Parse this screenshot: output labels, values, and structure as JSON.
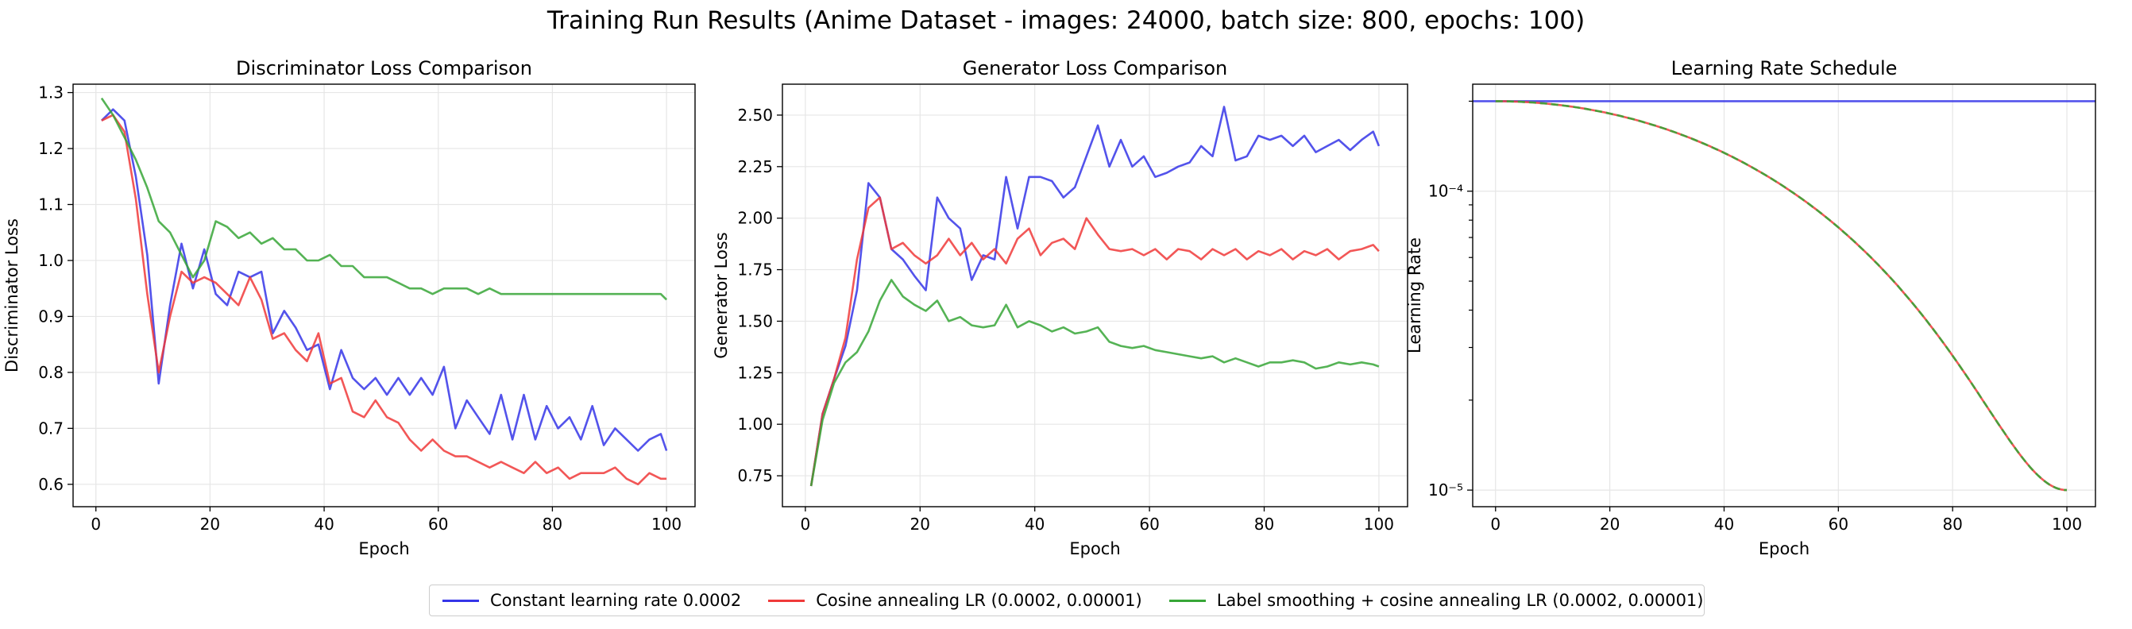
{
  "figure": {
    "suptitle": "Training Run Results (Anime Dataset - images: 24000, batch size: 800, epochs: 100)"
  },
  "legend": {
    "placement": "bottom-center",
    "entries": [
      {
        "label": "Constant learning rate 0.0002",
        "color": "#3535e8"
      },
      {
        "label": "Cosine annealing LR (0.0002, 0.00001)",
        "color": "#f03a3a"
      },
      {
        "label": "Label smoothing + cosine annealing LR (0.0002, 0.00001)",
        "color": "#37a637"
      }
    ]
  },
  "chart_data": [
    {
      "type": "line",
      "title": "Discriminator Loss Comparison",
      "xlabel": "Epoch",
      "ylabel": "Discriminator Loss",
      "xlim": [
        -4,
        105
      ],
      "ylim": [
        0.56,
        1.315
      ],
      "xticks": [
        0,
        20,
        40,
        60,
        80,
        100
      ],
      "yticks": [
        0.6,
        0.7,
        0.8,
        0.9,
        1.0,
        1.1,
        1.2,
        1.3
      ],
      "ytick_labels": [
        "0.6",
        "0.7",
        "0.8",
        "0.9",
        "1.0",
        "1.1",
        "1.2",
        "1.3"
      ],
      "grid": true,
      "series": [
        {
          "name": "Constant learning rate 0.0002",
          "color": "#3535e8",
          "x": [
            1,
            3,
            5,
            7,
            9,
            11,
            13,
            15,
            17,
            19,
            21,
            23,
            25,
            27,
            29,
            31,
            33,
            35,
            37,
            39,
            41,
            43,
            45,
            47,
            49,
            51,
            53,
            55,
            57,
            59,
            61,
            63,
            65,
            67,
            69,
            71,
            73,
            75,
            77,
            79,
            81,
            83,
            85,
            87,
            89,
            91,
            93,
            95,
            97,
            99,
            100
          ],
          "y": [
            1.25,
            1.27,
            1.25,
            1.15,
            1.01,
            0.78,
            0.92,
            1.03,
            0.95,
            1.02,
            0.94,
            0.92,
            0.98,
            0.97,
            0.98,
            0.87,
            0.91,
            0.88,
            0.84,
            0.85,
            0.77,
            0.84,
            0.79,
            0.77,
            0.79,
            0.76,
            0.79,
            0.76,
            0.79,
            0.76,
            0.81,
            0.7,
            0.75,
            0.72,
            0.69,
            0.76,
            0.68,
            0.76,
            0.68,
            0.74,
            0.7,
            0.72,
            0.68,
            0.74,
            0.67,
            0.7,
            0.68,
            0.66,
            0.68,
            0.69,
            0.66
          ]
        },
        {
          "name": "Cosine annealing LR (0.0002, 0.00001)",
          "color": "#f03a3a",
          "x": [
            1,
            3,
            5,
            7,
            9,
            11,
            13,
            15,
            17,
            19,
            21,
            23,
            25,
            27,
            29,
            31,
            33,
            35,
            37,
            39,
            41,
            43,
            45,
            47,
            49,
            51,
            53,
            55,
            57,
            59,
            61,
            63,
            65,
            67,
            69,
            71,
            73,
            75,
            77,
            79,
            81,
            83,
            85,
            87,
            89,
            91,
            93,
            95,
            97,
            99,
            100
          ],
          "y": [
            1.25,
            1.26,
            1.23,
            1.11,
            0.94,
            0.8,
            0.9,
            0.98,
            0.96,
            0.97,
            0.96,
            0.94,
            0.92,
            0.97,
            0.93,
            0.86,
            0.87,
            0.84,
            0.82,
            0.87,
            0.78,
            0.79,
            0.73,
            0.72,
            0.75,
            0.72,
            0.71,
            0.68,
            0.66,
            0.68,
            0.66,
            0.65,
            0.65,
            0.64,
            0.63,
            0.64,
            0.63,
            0.62,
            0.64,
            0.62,
            0.63,
            0.61,
            0.62,
            0.62,
            0.62,
            0.63,
            0.61,
            0.6,
            0.62,
            0.61,
            0.61
          ]
        },
        {
          "name": "Label smoothing + cosine annealing LR (0.0002, 0.00001)",
          "color": "#37a637",
          "x": [
            1,
            3,
            5,
            7,
            9,
            11,
            13,
            15,
            17,
            19,
            21,
            23,
            25,
            27,
            29,
            31,
            33,
            35,
            37,
            39,
            41,
            43,
            45,
            47,
            49,
            51,
            53,
            55,
            57,
            59,
            61,
            63,
            65,
            67,
            69,
            71,
            73,
            75,
            77,
            79,
            81,
            83,
            85,
            87,
            89,
            91,
            93,
            95,
            97,
            99,
            100
          ],
          "y": [
            1.29,
            1.26,
            1.22,
            1.18,
            1.13,
            1.07,
            1.05,
            1.01,
            0.97,
            1.0,
            1.07,
            1.06,
            1.04,
            1.05,
            1.03,
            1.04,
            1.02,
            1.02,
            1.0,
            1.0,
            1.01,
            0.99,
            0.99,
            0.97,
            0.97,
            0.97,
            0.96,
            0.95,
            0.95,
            0.94,
            0.95,
            0.95,
            0.95,
            0.94,
            0.95,
            0.94,
            0.94,
            0.94,
            0.94,
            0.94,
            0.94,
            0.94,
            0.94,
            0.94,
            0.94,
            0.94,
            0.94,
            0.94,
            0.94,
            0.94,
            0.93
          ]
        }
      ]
    },
    {
      "type": "line",
      "title": "Generator Loss Comparison",
      "xlabel": "Epoch",
      "ylabel": "Generator Loss",
      "xlim": [
        -4,
        105
      ],
      "ylim": [
        0.6,
        2.65
      ],
      "xticks": [
        0,
        20,
        40,
        60,
        80,
        100
      ],
      "yticks": [
        0.75,
        1.0,
        1.25,
        1.5,
        1.75,
        2.0,
        2.25,
        2.5
      ],
      "ytick_labels": [
        "0.75",
        "1.00",
        "1.25",
        "1.50",
        "1.75",
        "2.00",
        "2.25",
        "2.50"
      ],
      "grid": true,
      "series": [
        {
          "name": "Constant learning rate 0.0002",
          "color": "#3535e8",
          "x": [
            1,
            3,
            5,
            7,
            9,
            11,
            13,
            15,
            17,
            19,
            21,
            23,
            25,
            27,
            29,
            31,
            33,
            35,
            37,
            39,
            41,
            43,
            45,
            47,
            49,
            51,
            53,
            55,
            57,
            59,
            61,
            63,
            65,
            67,
            69,
            71,
            73,
            75,
            77,
            79,
            81,
            83,
            85,
            87,
            89,
            91,
            93,
            95,
            97,
            99,
            100
          ],
          "y": [
            0.7,
            1.05,
            1.22,
            1.38,
            1.65,
            2.17,
            2.1,
            1.85,
            1.8,
            1.72,
            1.65,
            2.1,
            2.0,
            1.95,
            1.7,
            1.82,
            1.8,
            2.2,
            1.95,
            2.2,
            2.2,
            2.18,
            2.1,
            2.15,
            2.3,
            2.45,
            2.25,
            2.38,
            2.25,
            2.3,
            2.2,
            2.22,
            2.25,
            2.27,
            2.35,
            2.3,
            2.54,
            2.28,
            2.3,
            2.4,
            2.38,
            2.4,
            2.35,
            2.4,
            2.32,
            2.35,
            2.38,
            2.33,
            2.38,
            2.42,
            2.35
          ]
        },
        {
          "name": "Cosine annealing LR (0.0002, 0.00001)",
          "color": "#f03a3a",
          "x": [
            1,
            3,
            5,
            7,
            9,
            11,
            13,
            15,
            17,
            19,
            21,
            23,
            25,
            27,
            29,
            31,
            33,
            35,
            37,
            39,
            41,
            43,
            45,
            47,
            49,
            51,
            53,
            55,
            57,
            59,
            61,
            63,
            65,
            67,
            69,
            71,
            73,
            75,
            77,
            79,
            81,
            83,
            85,
            87,
            89,
            91,
            93,
            95,
            97,
            99,
            100
          ],
          "y": [
            0.7,
            1.05,
            1.22,
            1.42,
            1.8,
            2.05,
            2.1,
            1.85,
            1.88,
            1.82,
            1.78,
            1.82,
            1.9,
            1.82,
            1.88,
            1.8,
            1.85,
            1.78,
            1.9,
            1.95,
            1.82,
            1.88,
            1.9,
            1.85,
            2.0,
            1.92,
            1.85,
            1.84,
            1.85,
            1.82,
            1.85,
            1.8,
            1.85,
            1.84,
            1.8,
            1.85,
            1.82,
            1.85,
            1.8,
            1.84,
            1.82,
            1.85,
            1.8,
            1.84,
            1.82,
            1.85,
            1.8,
            1.84,
            1.85,
            1.87,
            1.84
          ]
        },
        {
          "name": "Label smoothing + cosine annealing LR (0.0002, 0.00001)",
          "color": "#37a637",
          "x": [
            1,
            3,
            5,
            7,
            9,
            11,
            13,
            15,
            17,
            19,
            21,
            23,
            25,
            27,
            29,
            31,
            33,
            35,
            37,
            39,
            41,
            43,
            45,
            47,
            49,
            51,
            53,
            55,
            57,
            59,
            61,
            63,
            65,
            67,
            69,
            71,
            73,
            75,
            77,
            79,
            81,
            83,
            85,
            87,
            89,
            91,
            93,
            95,
            97,
            99,
            100
          ],
          "y": [
            0.7,
            1.02,
            1.2,
            1.3,
            1.35,
            1.45,
            1.6,
            1.7,
            1.62,
            1.58,
            1.55,
            1.6,
            1.5,
            1.52,
            1.48,
            1.47,
            1.48,
            1.58,
            1.47,
            1.5,
            1.48,
            1.45,
            1.47,
            1.44,
            1.45,
            1.47,
            1.4,
            1.38,
            1.37,
            1.38,
            1.36,
            1.35,
            1.34,
            1.33,
            1.32,
            1.33,
            1.3,
            1.32,
            1.3,
            1.28,
            1.3,
            1.3,
            1.31,
            1.3,
            1.27,
            1.28,
            1.3,
            1.29,
            1.3,
            1.29,
            1.28
          ]
        }
      ]
    },
    {
      "type": "line",
      "title": "Learning Rate Schedule",
      "xlabel": "Epoch",
      "ylabel": "Learning Rate",
      "yscale": "log",
      "xlim": [
        -4,
        105
      ],
      "ylim": [
        8.8e-06,
        0.000228
      ],
      "xticks": [
        0,
        20,
        40,
        60,
        80,
        100
      ],
      "yticks": [
        1e-05,
        0.0001
      ],
      "ytick_labels": [
        "10⁻⁵",
        "10⁻⁴"
      ],
      "grid": true,
      "series": [
        {
          "name": "Constant learning rate 0.0002",
          "color": "#3535e8",
          "constant": 0.0002,
          "x": [
            -4,
            105
          ]
        },
        {
          "name": "Cosine annealing LR (0.0002, 0.00001)",
          "color": "#f03a3a",
          "schedule": "cosine",
          "lr_max": 0.0002,
          "lr_min": 1e-05,
          "x_range": [
            0,
            100
          ]
        },
        {
          "name": "Label smoothing + cosine annealing LR (0.0002, 0.00001)",
          "color": "#37a637",
          "schedule": "cosine",
          "lr_max": 0.0002,
          "lr_min": 1e-05,
          "x_range": [
            0,
            100
          ],
          "dashed": true
        }
      ]
    }
  ]
}
